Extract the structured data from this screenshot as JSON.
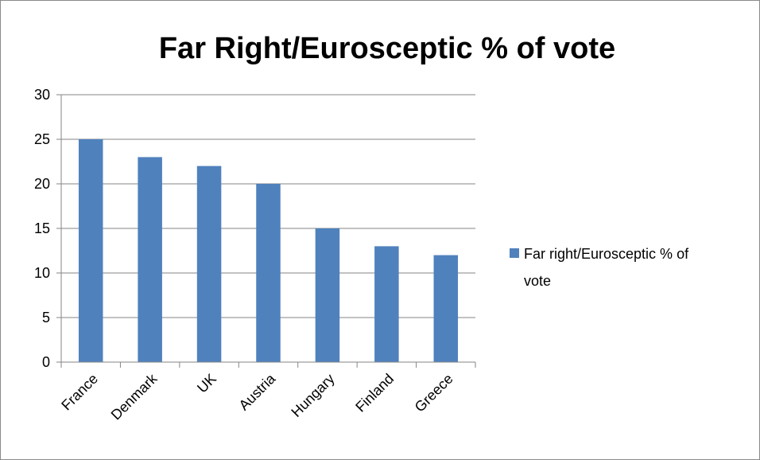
{
  "chart_data": {
    "type": "bar",
    "title": "Far Right/Eurosceptic % of vote",
    "categories": [
      "France",
      "Denmark",
      "UK",
      "Austria",
      "Hungary",
      "Finland",
      "Greece"
    ],
    "series": [
      {
        "name": "Far right/Eurosceptic % of vote",
        "values": [
          25,
          23,
          22,
          20,
          15,
          13,
          12
        ],
        "color": "#4f81bd"
      }
    ],
    "legend_lines": [
      "Far right/Eurosceptic % of",
      "vote"
    ],
    "ylim": [
      0,
      30
    ],
    "yticks": [
      "0",
      "5",
      "10",
      "15",
      "20",
      "25",
      "30"
    ],
    "grid": true,
    "legend_position": "right",
    "xlabel": "",
    "ylabel": ""
  }
}
